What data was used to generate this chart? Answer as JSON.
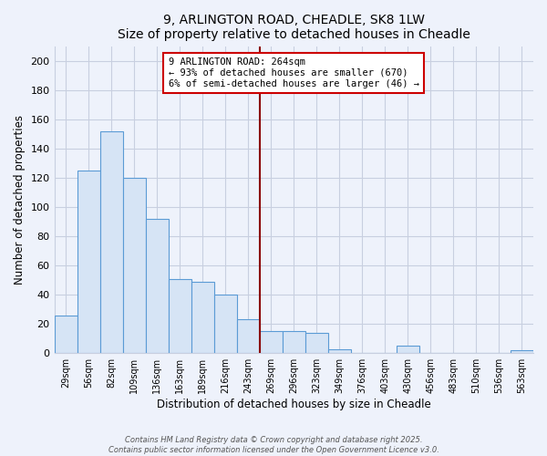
{
  "title": "9, ARLINGTON ROAD, CHEADLE, SK8 1LW",
  "subtitle": "Size of property relative to detached houses in Cheadle",
  "xlabel": "Distribution of detached houses by size in Cheadle",
  "ylabel": "Number of detached properties",
  "bar_color": "#d6e4f5",
  "bar_edge_color": "#5b9bd5",
  "bin_labels": [
    "29sqm",
    "56sqm",
    "82sqm",
    "109sqm",
    "136sqm",
    "163sqm",
    "189sqm",
    "216sqm",
    "243sqm",
    "269sqm",
    "296sqm",
    "323sqm",
    "349sqm",
    "376sqm",
    "403sqm",
    "430sqm",
    "456sqm",
    "483sqm",
    "510sqm",
    "536sqm",
    "563sqm"
  ],
  "bar_values": [
    26,
    125,
    152,
    120,
    92,
    51,
    49,
    40,
    23,
    15,
    15,
    14,
    3,
    0,
    0,
    5,
    0,
    0,
    0,
    0,
    2
  ],
  "vline_x_idx": 9,
  "vline_color": "#8b0000",
  "annotation_text": "9 ARLINGTON ROAD: 264sqm\n← 93% of detached houses are smaller (670)\n6% of semi-detached houses are larger (46) →",
  "ylim": [
    0,
    210
  ],
  "yticks": [
    0,
    20,
    40,
    60,
    80,
    100,
    120,
    140,
    160,
    180,
    200
  ],
  "footer_line1": "Contains HM Land Registry data © Crown copyright and database right 2025.",
  "footer_line2": "Contains public sector information licensed under the Open Government Licence v3.0.",
  "background_color": "#eef2fb",
  "grid_color": "#c8cfe0",
  "plot_bg_color": "#eef2fb"
}
